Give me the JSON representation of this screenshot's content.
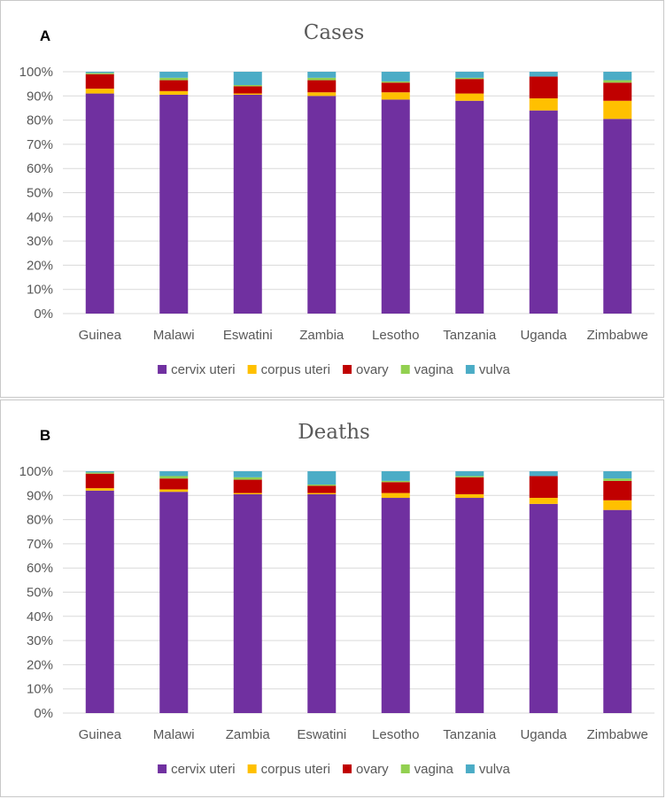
{
  "chart_data": [
    {
      "type": "bar",
      "stacked": true,
      "panel_label": "A",
      "title": "Cases",
      "categories": [
        "Guinea",
        "Malawi",
        "Eswatini",
        "Zambia",
        "Lesotho",
        "Tanzania",
        "Uganda",
        "Zimbabwe"
      ],
      "series": [
        {
          "name": "cervix uteri",
          "color": "#7030A0",
          "values": [
            91,
            90.5,
            90.5,
            90,
            88.5,
            88,
            84,
            80.5
          ]
        },
        {
          "name": "corpus uteri",
          "color": "#FFC000",
          "values": [
            2,
            1.5,
            0.5,
            1.5,
            3,
            3,
            5,
            7.5
          ]
        },
        {
          "name": "ovary",
          "color": "#C00000",
          "values": [
            6,
            4.5,
            3,
            5,
            4,
            6,
            9,
            7.5
          ]
        },
        {
          "name": "vagina",
          "color": "#92D050",
          "values": [
            0.5,
            1,
            0.5,
            1,
            0.5,
            0.5,
            0,
            1
          ]
        },
        {
          "name": "vulva",
          "color": "#4BACC6",
          "values": [
            0.5,
            2.5,
            5.5,
            2.5,
            4,
            2.5,
            2,
            3.5
          ]
        }
      ],
      "ylim": [
        0,
        100
      ],
      "yticks": [
        "0%",
        "10%",
        "20%",
        "30%",
        "40%",
        "50%",
        "60%",
        "70%",
        "80%",
        "90%",
        "100%"
      ],
      "legend_position": "bottom"
    },
    {
      "type": "bar",
      "stacked": true,
      "panel_label": "B",
      "title": "Deaths",
      "categories": [
        "Guinea",
        "Malawi",
        "Zambia",
        "Eswatini",
        "Lesotho",
        "Tanzania",
        "Uganda",
        "Zimbabwe"
      ],
      "series": [
        {
          "name": "cervix uteri",
          "color": "#7030A0",
          "values": [
            92,
            91.5,
            90.5,
            90.5,
            89,
            89,
            86.5,
            84
          ]
        },
        {
          "name": "corpus uteri",
          "color": "#FFC000",
          "values": [
            1,
            1,
            0.5,
            0.5,
            2,
            1.5,
            2.5,
            4
          ]
        },
        {
          "name": "ovary",
          "color": "#C00000",
          "values": [
            6,
            4.5,
            5.5,
            3,
            4.5,
            7,
            9,
            8
          ]
        },
        {
          "name": "vagina",
          "color": "#92D050",
          "values": [
            0.5,
            1,
            1,
            0.5,
            0.5,
            0.5,
            0,
            1
          ]
        },
        {
          "name": "vulva",
          "color": "#4BACC6",
          "values": [
            0.5,
            2,
            2.5,
            5.5,
            4,
            2,
            2,
            3
          ]
        }
      ],
      "ylim": [
        0,
        100
      ],
      "yticks": [
        "0%",
        "10%",
        "20%",
        "30%",
        "40%",
        "50%",
        "60%",
        "70%",
        "80%",
        "90%",
        "100%"
      ],
      "legend_position": "bottom"
    }
  ]
}
